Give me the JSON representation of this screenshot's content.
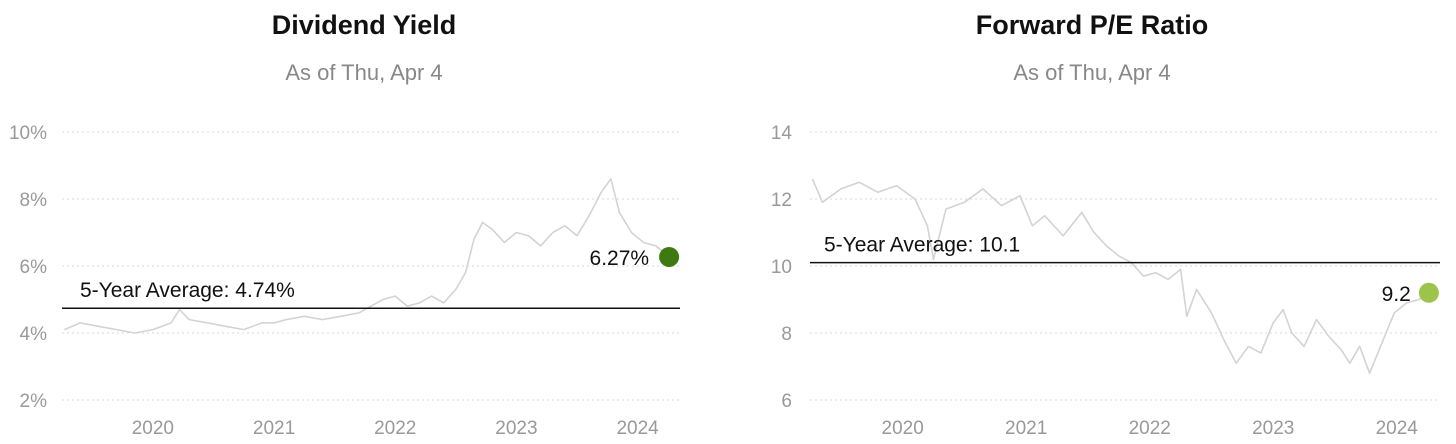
{
  "chart_data": [
    {
      "type": "line",
      "title": "Dividend Yield",
      "subtitle": "As of Thu, Apr 4",
      "unit_suffix": "%",
      "ylim": [
        2,
        10
      ],
      "yticks": [
        2,
        4,
        6,
        8,
        10
      ],
      "ytick_labels": [
        "2%",
        "4%",
        "6%",
        "8%",
        "10%"
      ],
      "xlim": [
        2019.25,
        2024.35
      ],
      "xticks": [
        2020,
        2021,
        2022,
        2023,
        2024
      ],
      "xtick_labels": [
        "2020",
        "2021",
        "2022",
        "2023",
        "2024"
      ],
      "grid": true,
      "line_color": "#d3d3d3",
      "average": {
        "label": "5-Year Average: 4.74%",
        "value": 4.74
      },
      "latest": {
        "label": "6.27%",
        "x": 2024.26,
        "value": 6.27,
        "color": "#3e7a11"
      },
      "series": [
        {
          "x": [
            2019.27,
            2019.4,
            2019.55,
            2019.7,
            2019.85,
            2020.0,
            2020.15,
            2020.22,
            2020.3,
            2020.45,
            2020.6,
            2020.75,
            2020.9,
            2021.0,
            2021.1,
            2021.25,
            2021.4,
            2021.55,
            2021.7,
            2021.8,
            2021.9,
            2022.0,
            2022.1,
            2022.2,
            2022.3,
            2022.4,
            2022.5,
            2022.58,
            2022.65,
            2022.72,
            2022.8,
            2022.9,
            2023.0,
            2023.1,
            2023.2,
            2023.3,
            2023.4,
            2023.5,
            2023.6,
            2023.7,
            2023.78,
            2023.85,
            2023.95,
            2024.05,
            2024.15,
            2024.26
          ],
          "y": [
            4.1,
            4.3,
            4.2,
            4.1,
            4.0,
            4.1,
            4.3,
            4.7,
            4.4,
            4.3,
            4.2,
            4.1,
            4.3,
            4.3,
            4.4,
            4.5,
            4.4,
            4.5,
            4.6,
            4.8,
            5.0,
            5.1,
            4.8,
            4.9,
            5.1,
            4.9,
            5.3,
            5.8,
            6.8,
            7.3,
            7.1,
            6.7,
            7.0,
            6.9,
            6.6,
            7.0,
            7.2,
            6.9,
            7.5,
            8.2,
            8.6,
            7.6,
            7.0,
            6.7,
            6.6,
            6.27
          ]
        }
      ]
    },
    {
      "type": "line",
      "title": "Forward P/E Ratio",
      "subtitle": "As of Thu, Apr 4",
      "unit_suffix": "",
      "ylim": [
        6,
        14
      ],
      "yticks": [
        6,
        8,
        10,
        12,
        14
      ],
      "ytick_labels": [
        "6",
        "8",
        "10",
        "12",
        "14"
      ],
      "xlim": [
        2019.25,
        2024.35
      ],
      "xticks": [
        2020,
        2021,
        2022,
        2023,
        2024
      ],
      "xtick_labels": [
        "2020",
        "2021",
        "2022",
        "2023",
        "2024"
      ],
      "grid": true,
      "line_color": "#d3d3d3",
      "average": {
        "label": "5-Year Average: 10.1",
        "value": 10.1
      },
      "latest": {
        "label": "9.2",
        "x": 2024.26,
        "value": 9.2,
        "color": "#9cc44a"
      },
      "series": [
        {
          "x": [
            2019.27,
            2019.35,
            2019.5,
            2019.65,
            2019.8,
            2019.95,
            2020.1,
            2020.2,
            2020.25,
            2020.35,
            2020.5,
            2020.65,
            2020.8,
            2020.95,
            2021.05,
            2021.15,
            2021.3,
            2021.45,
            2021.55,
            2021.65,
            2021.75,
            2021.85,
            2021.95,
            2022.05,
            2022.15,
            2022.25,
            2022.3,
            2022.38,
            2022.5,
            2022.6,
            2022.7,
            2022.8,
            2022.9,
            2023.0,
            2023.08,
            2023.15,
            2023.25,
            2023.35,
            2023.45,
            2023.55,
            2023.62,
            2023.7,
            2023.78,
            2023.88,
            2023.98,
            2024.08,
            2024.18,
            2024.26
          ],
          "y": [
            12.6,
            11.9,
            12.3,
            12.5,
            12.2,
            12.4,
            12.0,
            11.2,
            10.2,
            11.7,
            11.9,
            12.3,
            11.8,
            12.1,
            11.2,
            11.5,
            10.9,
            11.6,
            11.0,
            10.6,
            10.3,
            10.1,
            9.7,
            9.8,
            9.6,
            9.9,
            8.5,
            9.3,
            8.6,
            7.8,
            7.1,
            7.6,
            7.4,
            8.3,
            8.7,
            8.0,
            7.6,
            8.4,
            7.9,
            7.5,
            7.1,
            7.6,
            6.8,
            7.7,
            8.6,
            8.9,
            9.0,
            9.2
          ]
        }
      ]
    }
  ]
}
